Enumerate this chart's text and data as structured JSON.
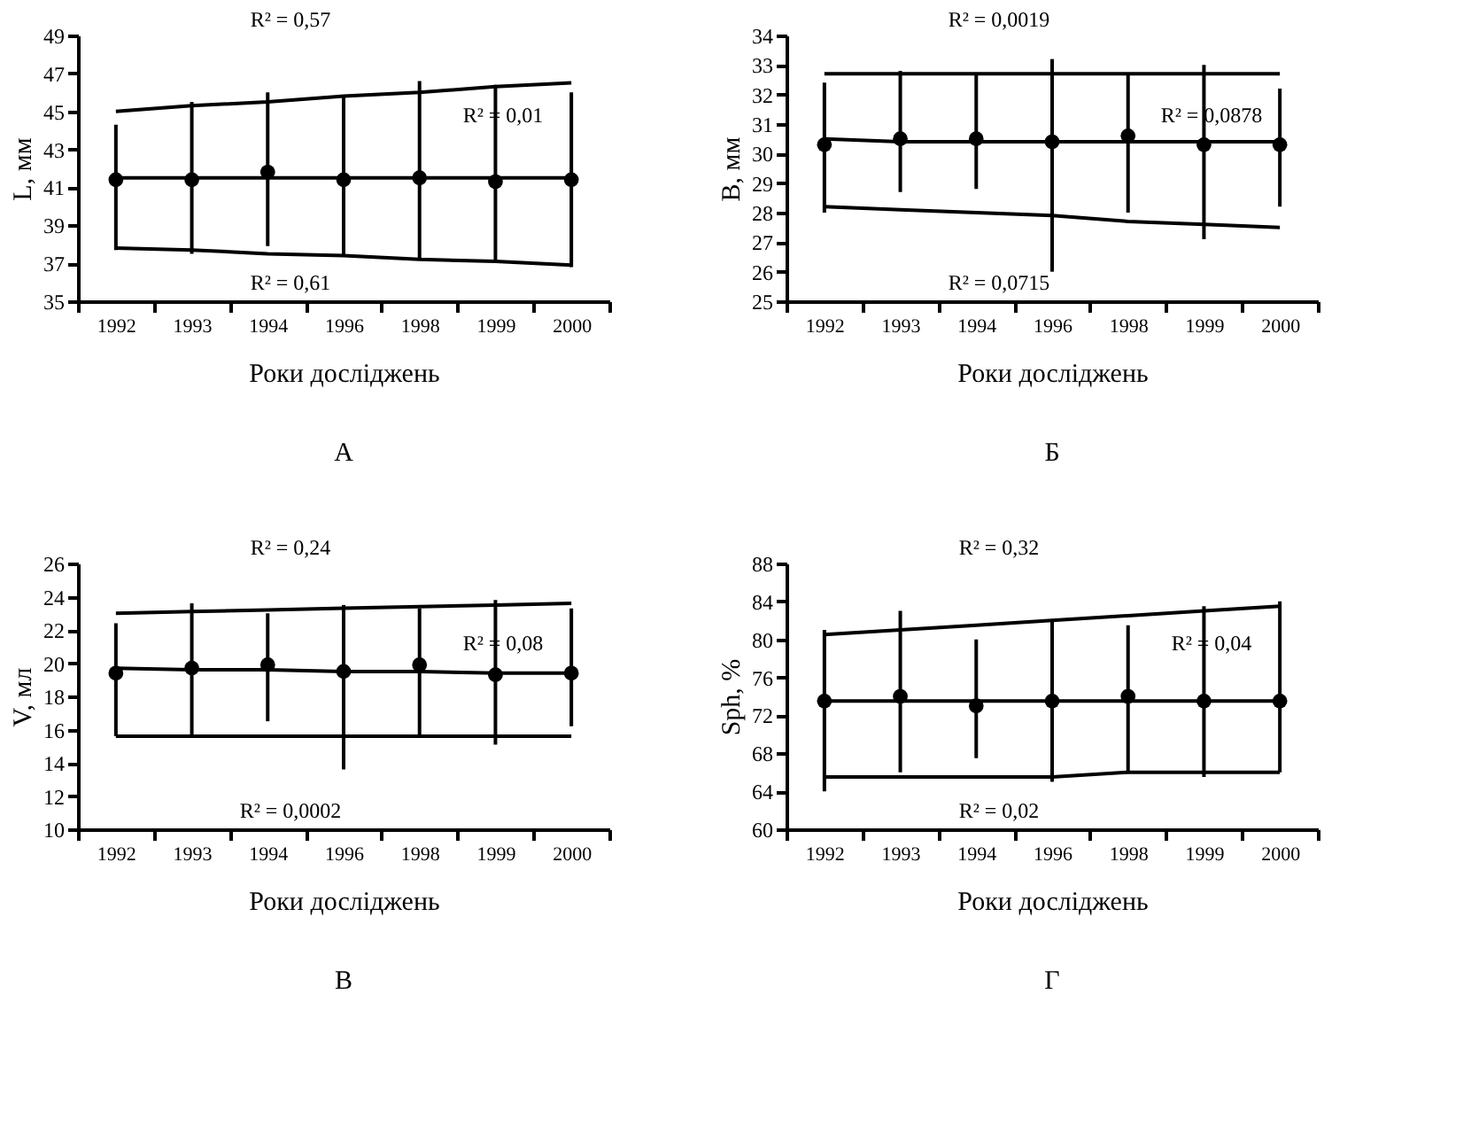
{
  "chart_data": [
    {
      "type": "scatter",
      "title": "А",
      "xlabel": "Роки досліджень",
      "ylabel": "L, мм",
      "categories": [
        "1992",
        "1993",
        "1994",
        "1996",
        "1998",
        "1999",
        "2000"
      ],
      "ylim": [
        35,
        49
      ],
      "yticks": [
        35,
        37,
        39,
        41,
        43,
        45,
        47,
        49
      ],
      "grid": false,
      "line_style": "solid",
      "series": [
        {
          "color": "#000000",
          "marker": "circle",
          "values": [
            41.4,
            41.4,
            41.8,
            41.4,
            41.5,
            41.3,
            41.4
          ],
          "errors": [
            [
              37.7,
              44.3
            ],
            [
              37.5,
              45.5
            ],
            [
              37.9,
              46.0
            ],
            [
              37.4,
              45.8
            ],
            [
              37.2,
              46.6
            ],
            [
              37.1,
              46.4
            ],
            [
              36.8,
              46.0
            ]
          ]
        },
        {
          "type": "line",
          "color": "#000000",
          "marker": "none",
          "values": [
            45.0,
            45.3,
            45.5,
            45.8,
            46.0,
            46.3,
            46.5
          ]
        },
        {
          "type": "line",
          "color": "#000000",
          "marker": "none",
          "values": [
            41.5,
            41.5,
            41.5,
            41.5,
            41.5,
            41.5,
            41.5
          ]
        },
        {
          "type": "line",
          "color": "#000000",
          "marker": "none",
          "values": [
            37.8,
            37.7,
            37.5,
            37.4,
            37.2,
            37.1,
            36.9
          ]
        }
      ],
      "annotations": [
        "R² = 0,57",
        "R² = 0,01",
        "R² = 0,61"
      ]
    },
    {
      "type": "scatter",
      "title": "Б",
      "xlabel": "Роки досліджень",
      "ylabel": "В, мм",
      "categories": [
        "1992",
        "1993",
        "1994",
        "1996",
        "1998",
        "1999",
        "2000"
      ],
      "ylim": [
        25,
        34
      ],
      "yticks": [
        25,
        26,
        27,
        28,
        29,
        30,
        31,
        32,
        33,
        34
      ],
      "grid": false,
      "line_style": "solid",
      "series": [
        {
          "color": "#000000",
          "marker": "circle",
          "values": [
            30.3,
            30.5,
            30.5,
            30.4,
            30.6,
            30.3,
            30.3
          ],
          "errors": [
            [
              28.0,
              32.4
            ],
            [
              28.7,
              32.8
            ],
            [
              28.8,
              32.7
            ],
            [
              26.0,
              33.2
            ],
            [
              28.0,
              32.7
            ],
            [
              27.1,
              33.0
            ],
            [
              28.2,
              32.2
            ]
          ]
        },
        {
          "type": "line",
          "color": "#000000",
          "marker": "none",
          "values": [
            32.7,
            32.7,
            32.7,
            32.7,
            32.7,
            32.7,
            32.7
          ]
        },
        {
          "type": "line",
          "color": "#000000",
          "marker": "none",
          "values": [
            30.5,
            30.4,
            30.4,
            30.4,
            30.4,
            30.4,
            30.4
          ]
        },
        {
          "type": "line",
          "color": "#000000",
          "marker": "none",
          "values": [
            28.2,
            28.1,
            28.0,
            27.9,
            27.7,
            27.6,
            27.5
          ]
        }
      ],
      "annotations": [
        "R² = 0,0019",
        "R² = 0,0878",
        "R² = 0,0715"
      ]
    },
    {
      "type": "scatter",
      "title": "В",
      "xlabel": "Роки досліджень",
      "ylabel": "V, мл",
      "categories": [
        "1992",
        "1993",
        "1994",
        "1996",
        "1998",
        "1999",
        "2000"
      ],
      "ylim": [
        10,
        26
      ],
      "yticks": [
        10,
        12,
        14,
        16,
        18,
        20,
        22,
        24,
        26
      ],
      "grid": false,
      "line_style": "solid",
      "series": [
        {
          "color": "#000000",
          "marker": "circle",
          "values": [
            19.4,
            19.7,
            19.9,
            19.5,
            19.9,
            19.3,
            19.4
          ],
          "errors": [
            [
              15.6,
              22.4
            ],
            [
              15.7,
              23.6
            ],
            [
              16.5,
              23.0
            ],
            [
              13.6,
              23.5
            ],
            [
              15.6,
              23.3
            ],
            [
              15.1,
              23.8
            ],
            [
              16.2,
              23.3
            ]
          ]
        },
        {
          "type": "line",
          "color": "#000000",
          "marker": "none",
          "values": [
            23.0,
            23.1,
            23.2,
            23.3,
            23.4,
            23.5,
            23.6
          ]
        },
        {
          "type": "line",
          "color": "#000000",
          "marker": "none",
          "values": [
            19.7,
            19.6,
            19.6,
            19.5,
            19.5,
            19.4,
            19.4
          ]
        },
        {
          "type": "line",
          "color": "#000000",
          "marker": "none",
          "values": [
            15.6,
            15.6,
            15.6,
            15.6,
            15.6,
            15.6,
            15.6
          ]
        }
      ],
      "annotations": [
        "R² = 0,24",
        "R² = 0,08",
        "R² = 0,0002"
      ]
    },
    {
      "type": "scatter",
      "title": "Г",
      "xlabel": "Роки досліджень",
      "ylabel": "Sph, %",
      "categories": [
        "1992",
        "1993",
        "1994",
        "1996",
        "1998",
        "1999",
        "2000"
      ],
      "ylim": [
        60,
        88
      ],
      "yticks": [
        60,
        64,
        68,
        72,
        76,
        80,
        84,
        88
      ],
      "grid": false,
      "line_style": "solid",
      "series": [
        {
          "color": "#000000",
          "marker": "circle",
          "values": [
            73.5,
            74,
            73,
            73.5,
            74,
            73.5,
            73.5
          ],
          "errors": [
            [
              64,
              81
            ],
            [
              66,
              83
            ],
            [
              67.5,
              80
            ],
            [
              65,
              82
            ],
            [
              66,
              81.5
            ],
            [
              65.5,
              83.5
            ],
            [
              66,
              84
            ]
          ]
        },
        {
          "type": "line",
          "color": "#000000",
          "marker": "none",
          "values": [
            80.5,
            81,
            81.5,
            82,
            82.5,
            83,
            83.5
          ]
        },
        {
          "type": "line",
          "color": "#000000",
          "marker": "none",
          "values": [
            73.5,
            73.5,
            73.5,
            73.5,
            73.5,
            73.5,
            73.5
          ]
        },
        {
          "type": "line",
          "color": "#000000",
          "marker": "none",
          "values": [
            65.5,
            65.5,
            65.5,
            65.5,
            66,
            66,
            66
          ]
        }
      ],
      "annotations": [
        "R² = 0,32",
        "R² = 0,04",
        "R² = 0,02"
      ]
    }
  ]
}
